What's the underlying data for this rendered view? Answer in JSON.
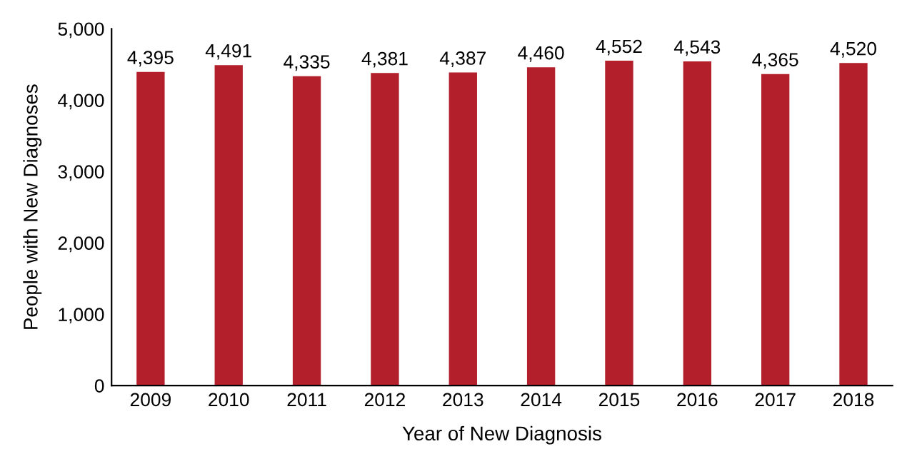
{
  "chart_data": {
    "type": "bar",
    "xlabel": "Year of New Diagnosis",
    "ylabel": "People with New Diagnoses",
    "categories": [
      "2009",
      "2010",
      "2011",
      "2012",
      "2013",
      "2014",
      "2015",
      "2016",
      "2017",
      "2018"
    ],
    "values": [
      4395,
      4491,
      4335,
      4381,
      4387,
      4460,
      4552,
      4543,
      4365,
      4520
    ],
    "value_labels": [
      "4,395",
      "4,491",
      "4,335",
      "4,381",
      "4,387",
      "4,460",
      "4,552",
      "4,543",
      "4,365",
      "4,520"
    ],
    "color": "#b31f2a",
    "ylim": [
      0,
      5000
    ],
    "yticks": [
      0,
      {
        "value": 1000,
        "label": "1,000"
      },
      {
        "value": 2000,
        "label": "2,000"
      },
      {
        "value": 3000,
        "label": "3,000"
      },
      {
        "value": 4000,
        "label": "4,000"
      },
      {
        "value": 5000,
        "label": "5,000"
      }
    ],
    "grid": false
  }
}
